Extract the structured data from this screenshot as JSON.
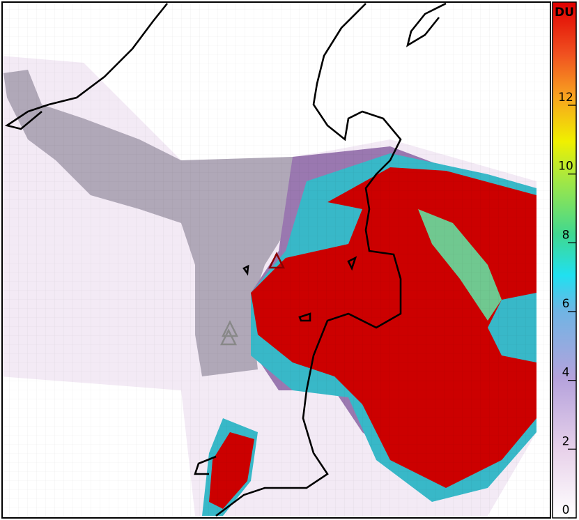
{
  "colorbar": {
    "label": "DU",
    "lim": [
      0,
      15
    ],
    "ticks": [
      0,
      2,
      4,
      6,
      8,
      10,
      12
    ]
  }
}
